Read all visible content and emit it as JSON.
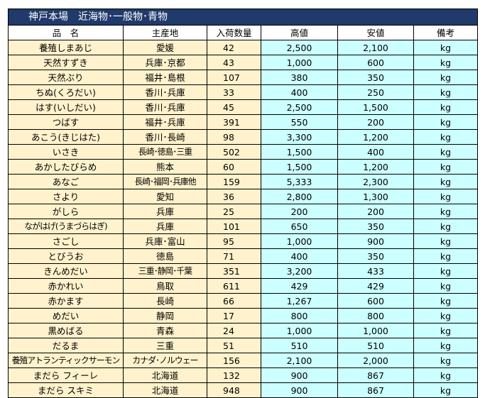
{
  "title": "神戸本場　近海物･一般物･青物",
  "headers": [
    "品　名",
    "主産地",
    "入荷数量",
    "高値",
    "安値",
    "備考"
  ],
  "rows": [
    {
      "name": "養殖しまあじ",
      "origin": "愛媛",
      "qty": "42",
      "high": "2,500",
      "low": "2,100",
      "unit": "kg"
    },
    {
      "name": "天然すずき",
      "origin": "兵庫･京都",
      "qty": "43",
      "high": "1,000",
      "low": "600",
      "unit": "kg"
    },
    {
      "name": "天然ぶり",
      "origin": "福井･島根",
      "qty": "107",
      "high": "380",
      "low": "350",
      "unit": "kg"
    },
    {
      "name": "ちぬ(くろだい)",
      "origin": "香川･兵庫",
      "qty": "33",
      "high": "400",
      "low": "250",
      "unit": "kg"
    },
    {
      "name": "はす(いしだい)",
      "origin": "香川･兵庫",
      "qty": "45",
      "high": "2,500",
      "low": "1,500",
      "unit": "kg"
    },
    {
      "name": "つばす",
      "origin": "福井･兵庫",
      "qty": "391",
      "high": "550",
      "low": "200",
      "unit": "kg"
    },
    {
      "name": "あこう(きじはた)",
      "origin": "香川･長崎",
      "qty": "98",
      "high": "3,300",
      "low": "1,200",
      "unit": "kg"
    },
    {
      "name": "いさき",
      "origin": "長崎･徳島･三重",
      "qty": "502",
      "high": "1,500",
      "low": "400",
      "unit": "kg"
    },
    {
      "name": "あかしたびらめ",
      "origin": "熊本",
      "qty": "60",
      "high": "1,500",
      "low": "1,200",
      "unit": "kg"
    },
    {
      "name": "あなご",
      "origin": "長崎･福岡･兵庫他",
      "qty": "159",
      "high": "5,333",
      "low": "2,300",
      "unit": "kg"
    },
    {
      "name": "さより",
      "origin": "愛知",
      "qty": "36",
      "high": "2,800",
      "low": "1,300",
      "unit": "kg"
    },
    {
      "name": "がしら",
      "origin": "兵庫",
      "qty": "25",
      "high": "200",
      "low": "200",
      "unit": "kg"
    },
    {
      "name": "ながはげ(うまづらはぎ)",
      "origin": "兵庫",
      "qty": "101",
      "high": "650",
      "low": "350",
      "unit": "kg"
    },
    {
      "name": "さごし",
      "origin": "兵庫･富山",
      "qty": "95",
      "high": "1,000",
      "low": "900",
      "unit": "kg"
    },
    {
      "name": "とびうお",
      "origin": "徳島",
      "qty": "71",
      "high": "400",
      "low": "350",
      "unit": "kg"
    },
    {
      "name": "きんめだい",
      "origin": "三重･静岡･千葉",
      "qty": "351",
      "high": "3,200",
      "low": "433",
      "unit": "kg"
    },
    {
      "name": "赤かれい",
      "origin": "鳥取",
      "qty": "611",
      "high": "429",
      "low": "429",
      "unit": "kg"
    },
    {
      "name": "赤かます",
      "origin": "長崎",
      "qty": "66",
      "high": "1,267",
      "low": "600",
      "unit": "kg"
    },
    {
      "name": "めだい",
      "origin": "静岡",
      "qty": "17",
      "high": "800",
      "low": "800",
      "unit": "kg"
    },
    {
      "name": "黒めばる",
      "origin": "青森",
      "qty": "24",
      "high": "1,000",
      "low": "1,000",
      "unit": "kg"
    },
    {
      "name": "だるま",
      "origin": "三重",
      "qty": "51",
      "high": "510",
      "low": "510",
      "unit": "kg"
    },
    {
      "name": "養殖アトランティックサーモン",
      "origin": "カナダ･ノルウェー",
      "qty": "156",
      "high": "2,100",
      "low": "2,000",
      "unit": "kg"
    },
    {
      "name": "まだら フィーレ",
      "origin": "北海道",
      "qty": "132",
      "high": "900",
      "low": "867",
      "unit": "kg"
    },
    {
      "name": "まだら スキミ",
      "origin": "北海道",
      "qty": "948",
      "high": "900",
      "low": "867",
      "unit": "kg"
    }
  ]
}
